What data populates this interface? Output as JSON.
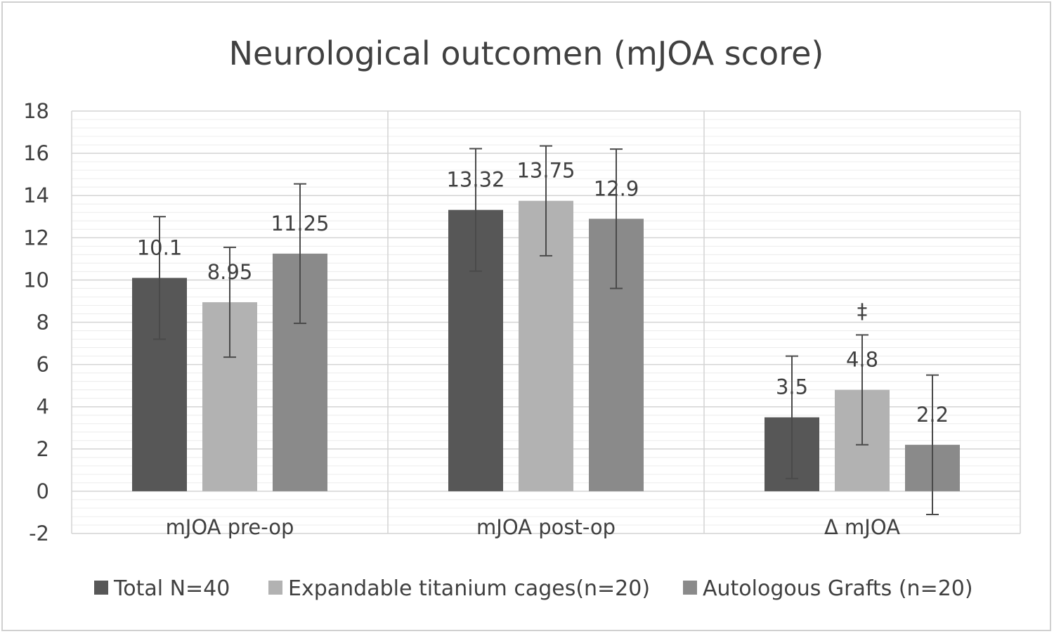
{
  "chart_data": {
    "type": "bar",
    "title": "Neurological outcomen (mJOA score)",
    "categories": [
      "mJOA pre-op",
      "mJOA post-op",
      "Δ mJOA"
    ],
    "series": [
      {
        "name": "Total N=40",
        "color": "#575757",
        "values": [
          10.1,
          13.32,
          3.5
        ],
        "labels": [
          "10.1",
          "13.32",
          "3.5"
        ],
        "error": [
          2.9,
          2.9,
          2.9
        ]
      },
      {
        "name": "Expandable titanium cages(n=20)",
        "color": "#b2b2b2",
        "values": [
          8.95,
          13.75,
          4.8
        ],
        "labels": [
          "8.95",
          "13.75",
          "4.8"
        ],
        "error": [
          2.6,
          2.6,
          2.6
        ]
      },
      {
        "name": "Autologous Grafts (n=20)",
        "color": "#8a8a8a",
        "values": [
          11.25,
          12.9,
          2.2
        ],
        "labels": [
          "11.25",
          "12.9",
          "2.2"
        ],
        "error": [
          3.3,
          3.3,
          3.3
        ]
      }
    ],
    "annotations": [
      {
        "text": "‡",
        "category": "Δ mJOA",
        "series": "Expandable titanium cages(n=20)"
      }
    ],
    "ylim": [
      -2,
      18
    ],
    "yticks": [
      -2,
      0,
      2,
      4,
      6,
      8,
      10,
      12,
      14,
      16,
      18
    ],
    "xlabel": "",
    "ylabel": "",
    "grid": true,
    "legend": "bottom"
  }
}
